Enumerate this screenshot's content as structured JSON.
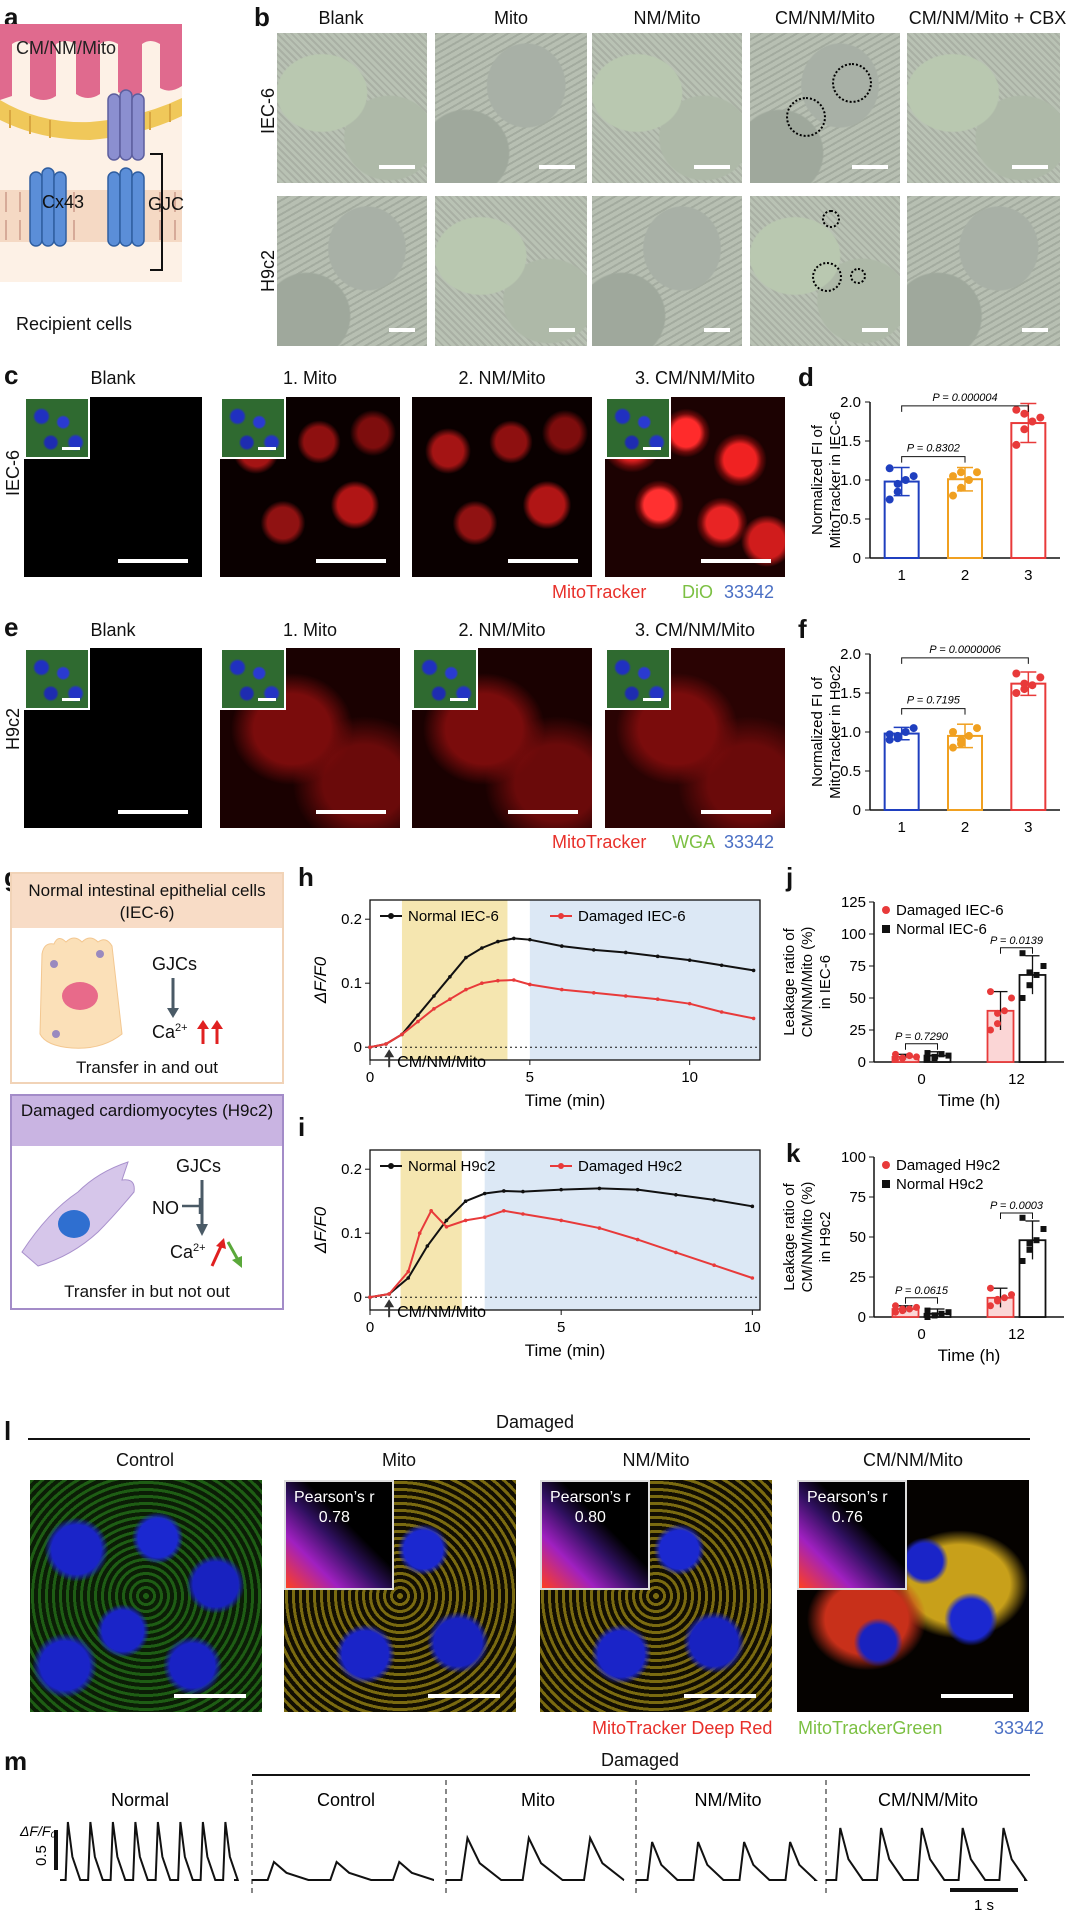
{
  "panel_letters": {
    "a": "a",
    "b": "b",
    "c": "c",
    "d": "d",
    "e": "e",
    "f": "f",
    "g": "g",
    "h": "h",
    "i": "i",
    "j": "j",
    "k": "k",
    "l": "l",
    "m": "m"
  },
  "panel_a": {
    "title": "CM/NM/Mito",
    "cx43": "Cx43",
    "gjc": "GJC",
    "recipient": "Recipient cells"
  },
  "panel_b": {
    "columns": [
      "Blank",
      "Mito",
      "NM/Mito",
      "CM/NM/Mito",
      "CM/NM/Mito + CBX"
    ],
    "rows": [
      "IEC-6",
      "H9c2"
    ]
  },
  "panel_c": {
    "row": "IEC-6",
    "columns": [
      "Blank",
      "1. Mito",
      "2. NM/Mito",
      "3. CM/NM/Mito"
    ]
  },
  "panel_e": {
    "row": "H9c2",
    "columns": [
      "Blank",
      "1. Mito",
      "2. NM/Mito",
      "3. CM/NM/Mito"
    ]
  },
  "stains_ce": {
    "c": [
      {
        "text": "MitoTracker",
        "color": "#e8302a"
      },
      {
        "text": "DiO",
        "color": "#7cc043"
      },
      {
        "text": "33342",
        "color": "#4a6fc4"
      }
    ],
    "e": [
      {
        "text": "MitoTracker",
        "color": "#e8302a"
      },
      {
        "text": "WGA",
        "color": "#7cc043"
      },
      {
        "text": "33342",
        "color": "#4a6fc4"
      }
    ]
  },
  "panel_g": {
    "top_title": "Normal intestinal epithelial cells (IEC-6)",
    "top_gjcs": "GJCs",
    "top_ca": "Ca",
    "top_caption": "Transfer in and out",
    "bottom_title": "Damaged  cardiomyocytes (H9c2)",
    "bottom_gjcs": "GJCs",
    "bottom_no": "NO",
    "bottom_ca": "Ca",
    "bottom_caption": "Transfer in but not out",
    "ca_sup": "2+"
  },
  "panel_l": {
    "header": "Damaged",
    "columns": [
      "Control",
      "Mito",
      "NM/Mito",
      "CM/NM/Mito"
    ],
    "pearson_label": "Pearson’s r",
    "pearson_values": [
      "0.78",
      "0.80",
      "0.76"
    ],
    "stains": [
      {
        "text": "MitoTracker Deep Red",
        "color": "#e8302a"
      },
      {
        "text": "MitoTrackerGreen",
        "color": "#7cc043"
      },
      {
        "text": "33342",
        "color": "#4a6fc4"
      }
    ]
  },
  "panel_m": {
    "header": "Damaged",
    "columns": [
      "Normal",
      "Control",
      "Mito",
      "NM/Mito",
      "CM/NM/Mito"
    ],
    "ylabel": "ΔF/F₀",
    "yscale": "0.5",
    "xscale": "1 s"
  },
  "chart_data": [
    {
      "id": "d",
      "type": "bar",
      "ylabel": "Normalized FI of MitoTracker in IEC-6",
      "categories": [
        "1",
        "2",
        "3"
      ],
      "values": [
        0.98,
        1.01,
        1.73
      ],
      "errors": [
        0.18,
        0.15,
        0.25
      ],
      "ylim": [
        0,
        2.0
      ],
      "yticks": [
        "0",
        "0.5",
        "1.0",
        "1.5",
        "2.0"
      ],
      "colors": [
        "#1f3fbf",
        "#f0a020",
        "#e83a3a"
      ],
      "points": [
        [
          0.75,
          0.85,
          1.0,
          1.05,
          1.15,
          0.95
        ],
        [
          0.8,
          0.9,
          1.0,
          1.1,
          1.05,
          1.1
        ],
        [
          1.45,
          1.65,
          1.75,
          1.8,
          1.9,
          1.85
        ]
      ],
      "annotations": [
        "P = 0.8302",
        "P = 0.000004"
      ]
    },
    {
      "id": "f",
      "type": "bar",
      "ylabel": "Normalized FI of MitoTracker in H9c2",
      "categories": [
        "1",
        "2",
        "3"
      ],
      "values": [
        0.98,
        0.95,
        1.62
      ],
      "errors": [
        0.08,
        0.15,
        0.15
      ],
      "ylim": [
        0,
        2.0
      ],
      "yticks": [
        "0",
        "0.5",
        "1.0",
        "1.5",
        "2.0"
      ],
      "colors": [
        "#1f3fbf",
        "#f0a020",
        "#e83a3a"
      ],
      "points": [
        [
          0.9,
          0.95,
          1.0,
          1.05,
          0.97,
          0.92
        ],
        [
          0.8,
          0.85,
          0.95,
          1.05,
          1.0,
          0.9
        ],
        [
          1.5,
          1.55,
          1.6,
          1.7,
          1.75,
          1.62
        ]
      ],
      "annotations": [
        "P = 0.7195",
        "P = 0.0000006"
      ]
    },
    {
      "id": "h",
      "type": "line",
      "xlabel": "Time (min)",
      "ylabel": "ΔF/F0",
      "xlim": [
        0,
        12.2
      ],
      "ylim": [
        -0.02,
        0.23
      ],
      "xticks": [
        "0",
        "5",
        "10"
      ],
      "yticks": [
        "0",
        "0.1",
        "0.2"
      ],
      "series": [
        {
          "name": "Normal IEC-6",
          "color": "#111111",
          "x": [
            0,
            0.5,
            1,
            1.5,
            2,
            2.5,
            3,
            3.5,
            4,
            4.5,
            5,
            6,
            7,
            8,
            9,
            10,
            11,
            12
          ],
          "y": [
            0,
            0.005,
            0.02,
            0.05,
            0.08,
            0.11,
            0.14,
            0.155,
            0.165,
            0.17,
            0.168,
            0.158,
            0.152,
            0.148,
            0.142,
            0.136,
            0.128,
            0.12
          ]
        },
        {
          "name": "Damaged IEC-6",
          "color": "#e83a3a",
          "x": [
            0,
            0.5,
            1,
            1.5,
            2,
            2.5,
            3,
            3.5,
            4,
            4.5,
            5,
            6,
            7,
            8,
            9,
            10,
            11,
            12
          ],
          "y": [
            0,
            0.005,
            0.02,
            0.04,
            0.06,
            0.075,
            0.09,
            0.1,
            0.104,
            0.105,
            0.098,
            0.09,
            0.085,
            0.08,
            0.075,
            0.068,
            0.055,
            0.045
          ]
        }
      ],
      "shaded": [
        {
          "from": 1,
          "to": 4.3,
          "color": "#f5e6b0"
        },
        {
          "from": 5,
          "to": 12.2,
          "color": "#dce8f5"
        }
      ],
      "annotation": "CM/NM/Mito",
      "annotation_x": 0.6
    },
    {
      "id": "i",
      "type": "line",
      "xlabel": "Time (min)",
      "ylabel": "ΔF/F0",
      "xlim": [
        0,
        10.2
      ],
      "ylim": [
        -0.02,
        0.23
      ],
      "xticks": [
        "0",
        "5",
        "10"
      ],
      "yticks": [
        "0",
        "0.1",
        "0.2"
      ],
      "series": [
        {
          "name": "Normal H9c2",
          "color": "#111111",
          "x": [
            0,
            0.5,
            1,
            1.5,
            2,
            2.5,
            3,
            3.5,
            4,
            5,
            6,
            7,
            8,
            9,
            10
          ],
          "y": [
            0,
            0.005,
            0.03,
            0.08,
            0.12,
            0.15,
            0.162,
            0.166,
            0.165,
            0.168,
            0.17,
            0.168,
            0.16,
            0.152,
            0.142
          ]
        },
        {
          "name": "Damaged H9c2",
          "color": "#e83a3a",
          "x": [
            0,
            0.5,
            1,
            1.3,
            1.6,
            2,
            2.5,
            3,
            3.5,
            4,
            5,
            6,
            7,
            8,
            9,
            10
          ],
          "y": [
            0,
            0.005,
            0.04,
            0.1,
            0.135,
            0.11,
            0.12,
            0.125,
            0.135,
            0.13,
            0.12,
            0.108,
            0.09,
            0.07,
            0.05,
            0.03
          ]
        }
      ],
      "shaded": [
        {
          "from": 0.8,
          "to": 2.4,
          "color": "#f5e6b0"
        },
        {
          "from": 3,
          "to": 10.2,
          "color": "#dce8f5"
        }
      ],
      "annotation": "CM/NM/Mito",
      "annotation_x": 0.5
    },
    {
      "id": "j",
      "type": "bar",
      "xlabel": "Time (h)",
      "ylabel": "Leakage ratio of CM/NM/Mito (%) in IEC-6",
      "categories": [
        "0",
        "12"
      ],
      "ylim": [
        0,
        125
      ],
      "yticks": [
        "0",
        "25",
        "50",
        "75",
        "100",
        "125"
      ],
      "series": [
        {
          "name": "Damaged IEC-6",
          "color": "#e83a3a",
          "values": [
            4,
            40
          ],
          "errors": [
            2,
            15
          ],
          "points": [
            [
              2,
              3,
              5,
              4,
              6,
              3
            ],
            [
              25,
              30,
              40,
              50,
              55,
              38
            ]
          ]
        },
        {
          "name": "Normal IEC-6",
          "color": "#111111",
          "values": [
            5,
            68
          ],
          "errors": [
            3,
            15
          ],
          "points": [
            [
              2,
              4,
              6,
              5,
              7,
              3
            ],
            [
              50,
              60,
              68,
              75,
              85,
              70
            ]
          ]
        }
      ],
      "annotations": [
        "P = 0.7290",
        "P = 0.0139"
      ]
    },
    {
      "id": "k",
      "type": "bar",
      "xlabel": "Time (h)",
      "ylabel": "Leakage ratio of CM/NM/Mito (%) in H9c2",
      "categories": [
        "0",
        "12"
      ],
      "ylim": [
        0,
        100
      ],
      "yticks": [
        "0",
        "25",
        "50",
        "75",
        "100"
      ],
      "series": [
        {
          "name": "Damaged H9c2",
          "color": "#e83a3a",
          "values": [
            5,
            12
          ],
          "errors": [
            2,
            6
          ],
          "points": [
            [
              3,
              4,
              5,
              6,
              7,
              5
            ],
            [
              7,
              10,
              12,
              14,
              18,
              11
            ]
          ]
        },
        {
          "name": "Normal H9c2",
          "color": "#111111",
          "values": [
            2,
            48
          ],
          "errors": [
            3,
            12
          ],
          "points": [
            [
              0,
              1,
              2,
              3,
              4,
              1
            ],
            [
              35,
              42,
              48,
              55,
              62,
              46
            ]
          ]
        }
      ],
      "annotations": [
        "P = 0.0615",
        "P = 0.0003"
      ]
    }
  ]
}
